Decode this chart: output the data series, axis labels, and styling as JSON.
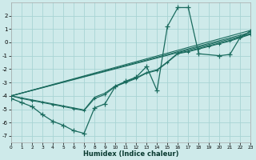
{
  "xlabel": "Humidex (Indice chaleur)",
  "xlim": [
    0,
    23
  ],
  "ylim": [
    -7.5,
    3.0
  ],
  "yticks": [
    2,
    1,
    0,
    -1,
    -2,
    -3,
    -4,
    -5,
    -6,
    -7
  ],
  "xticks": [
    0,
    1,
    2,
    3,
    4,
    5,
    6,
    7,
    8,
    9,
    10,
    11,
    12,
    13,
    14,
    15,
    16,
    17,
    18,
    19,
    20,
    21,
    22,
    23
  ],
  "bg_color": "#ceeaea",
  "grid_color": "#a8d4d4",
  "line_color": "#1a6b5e",
  "curve_wiggly_x": [
    0,
    1,
    2,
    3,
    4,
    5,
    6,
    7,
    8,
    9,
    10,
    11,
    12,
    13,
    14,
    15,
    16,
    17,
    18,
    20,
    21,
    22,
    23
  ],
  "curve_wiggly_y": [
    -4.2,
    -4.5,
    -4.8,
    -5.4,
    -5.9,
    -6.2,
    -6.6,
    -6.8,
    -4.9,
    -4.6,
    -3.3,
    -2.9,
    -2.6,
    -1.8,
    -3.6,
    1.2,
    2.6,
    2.6,
    -0.85,
    -1.0,
    -0.9,
    0.4,
    0.85
  ],
  "curve_smooth1_x": [
    0,
    1,
    2,
    3,
    4,
    5,
    6,
    7,
    8,
    9,
    10,
    11,
    12,
    13,
    14,
    15,
    16,
    17,
    18,
    19,
    20,
    21,
    22,
    23
  ],
  "curve_smooth1_y": [
    -4.0,
    -4.2,
    -4.35,
    -4.5,
    -4.65,
    -4.8,
    -4.95,
    -5.1,
    -4.2,
    -3.9,
    -3.3,
    -3.0,
    -2.7,
    -2.3,
    -2.1,
    -1.5,
    -0.85,
    -0.7,
    -0.5,
    -0.3,
    -0.1,
    0.1,
    0.35,
    0.6
  ],
  "curve_smooth2_x": [
    0,
    1,
    2,
    3,
    4,
    5,
    6,
    7,
    8,
    9,
    10,
    11,
    12,
    13,
    14,
    15,
    16,
    17,
    18,
    19,
    20,
    21,
    22,
    23
  ],
  "curve_smooth2_y": [
    -4.0,
    -4.15,
    -4.3,
    -4.45,
    -4.6,
    -4.75,
    -4.9,
    -5.05,
    -4.1,
    -3.8,
    -3.25,
    -2.95,
    -2.65,
    -2.25,
    -2.05,
    -1.45,
    -0.8,
    -0.65,
    -0.45,
    -0.25,
    -0.05,
    0.15,
    0.4,
    0.65
  ],
  "trend1_x": [
    0,
    23
  ],
  "trend1_y": [
    -4.0,
    0.9
  ],
  "trend2_x": [
    0,
    23
  ],
  "trend2_y": [
    -4.0,
    0.75
  ],
  "trend3_x": [
    0,
    23
  ],
  "trend3_y": [
    -4.0,
    0.65
  ]
}
